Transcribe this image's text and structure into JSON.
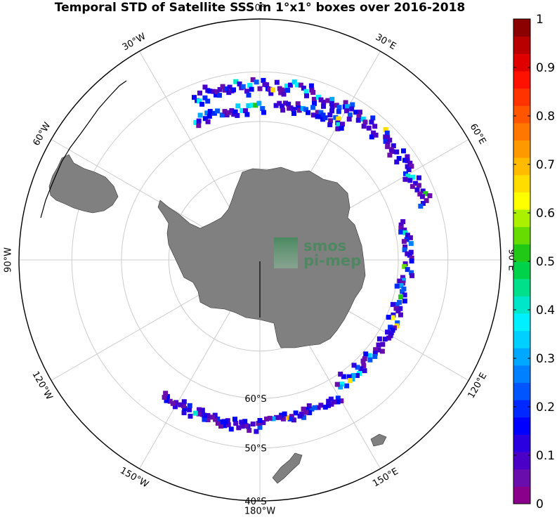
{
  "title": "Temporal STD of Satellite SSS in 1°x1° boxes over 2016-2018",
  "watermark": {
    "line1": "smos",
    "line2": "pi-mep",
    "color": "#3f8a5a"
  },
  "map": {
    "projection": "south-polar-stereographic",
    "land_color": "#808080",
    "grid_color": "#cccccc",
    "meridians": [
      {
        "lon": 0,
        "label": "0°"
      },
      {
        "lon": 30,
        "label": "30°E"
      },
      {
        "lon": 60,
        "label": "60°E"
      },
      {
        "lon": 90,
        "label": "90°E"
      },
      {
        "lon": 120,
        "label": "120°E"
      },
      {
        "lon": 150,
        "label": "150°E"
      },
      {
        "lon": 180,
        "label": "180°W"
      },
      {
        "lon": -150,
        "label": "150°W"
      },
      {
        "lon": -120,
        "label": "120°W"
      },
      {
        "lon": -90,
        "label": "90°W"
      },
      {
        "lon": -60,
        "label": "60°W"
      },
      {
        "lon": -30,
        "label": "30°W"
      }
    ],
    "parallels": [
      {
        "lat": -80
      },
      {
        "lat": -70
      },
      {
        "lat": -60,
        "label": "60°S"
      },
      {
        "lat": -50,
        "label": "50°S"
      },
      {
        "lat": -40,
        "label": "40°S"
      }
    ]
  },
  "colorbar": {
    "ticks": [
      "0",
      "0.1",
      "0.2",
      "0.3",
      "0.4",
      "0.5",
      "0.6",
      "0.7",
      "0.8",
      "0.9",
      "1"
    ],
    "min": 0,
    "max": 1,
    "colors": [
      "#8b008b",
      "#6a0dad",
      "#4b00c8",
      "#2a00e0",
      "#0000ff",
      "#0028ff",
      "#0055ff",
      "#0080ff",
      "#00a8ff",
      "#00d0ff",
      "#00f0ff",
      "#00e6c8",
      "#00e08a",
      "#00d24a",
      "#22c816",
      "#66dc00",
      "#aaf000",
      "#ffff00",
      "#ffdd00",
      "#ffbb00",
      "#ff9900",
      "#ff7700",
      "#ff5500",
      "#ff3300",
      "#ff1100",
      "#e00000",
      "#b80000",
      "#8b0000"
    ]
  }
}
